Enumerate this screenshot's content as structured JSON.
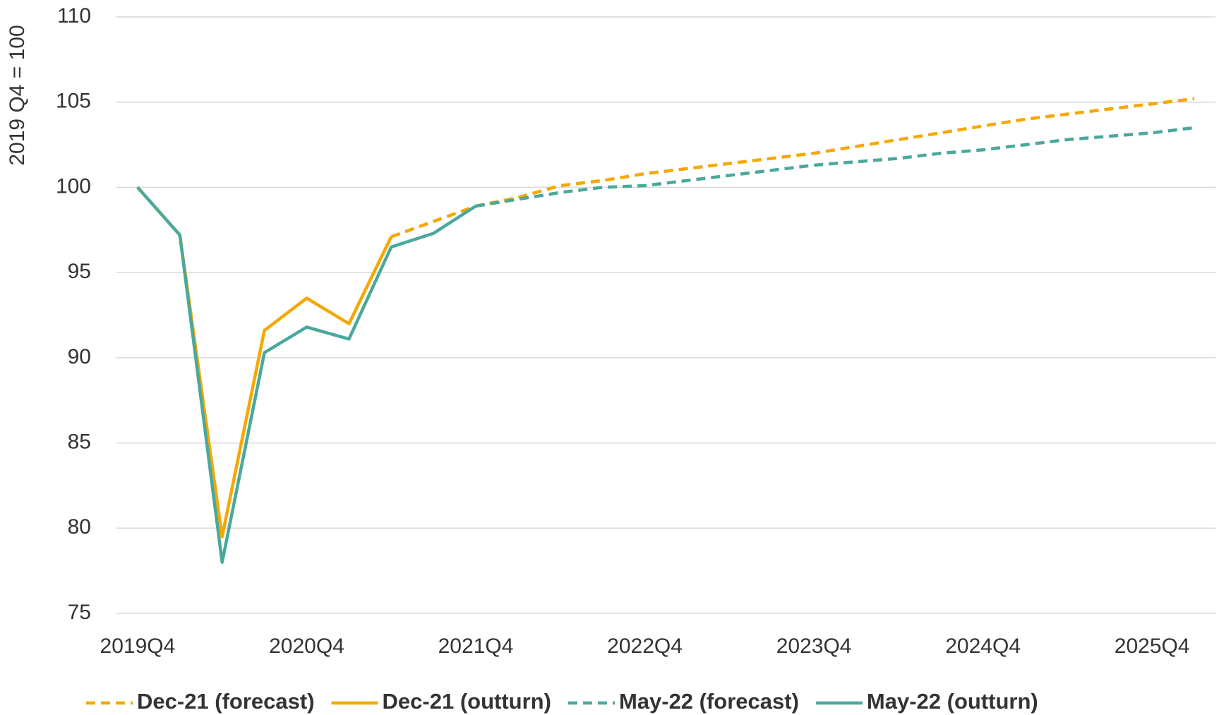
{
  "chart_data": {
    "type": "line",
    "y_label": "2019 Q4 = 100",
    "categories": [
      "2019Q4",
      null,
      null,
      null,
      "2020Q4",
      null,
      null,
      null,
      "2021Q4",
      null,
      null,
      null,
      "2022Q4",
      null,
      null,
      null,
      "2023Q4",
      null,
      null,
      null,
      "2024Q4",
      null,
      null,
      null,
      "2025Q4",
      null
    ],
    "series": [
      {
        "name": "Dec-21 (forecast)",
        "color": "#f5a800",
        "dashed": true,
        "values": [
          null,
          null,
          null,
          null,
          null,
          null,
          97.1,
          98.0,
          98.9,
          99.4,
          100.1,
          100.4,
          100.8,
          101.1,
          101.4,
          101.7,
          102.0,
          102.4,
          102.8,
          103.2,
          103.6,
          104.0,
          104.3,
          104.6,
          104.9,
          105.2
        ]
      },
      {
        "name": "Dec-21 (outturn)",
        "color": "#f5a800",
        "dashed": false,
        "values": [
          100,
          97.2,
          79.5,
          91.6,
          93.5,
          92.0,
          97.1,
          null,
          null,
          null,
          null,
          null,
          null,
          null,
          null,
          null,
          null,
          null,
          null,
          null,
          null,
          null,
          null,
          null,
          null,
          null
        ]
      },
      {
        "name": "May-22 (forecast)",
        "color": "#4aa89c",
        "dashed": true,
        "values": [
          null,
          null,
          null,
          null,
          null,
          null,
          null,
          null,
          98.9,
          99.3,
          99.7,
          100.0,
          100.1,
          100.4,
          100.7,
          101.0,
          101.3,
          101.5,
          101.7,
          102.0,
          102.2,
          102.5,
          102.8,
          103.0,
          103.2,
          103.5
        ]
      },
      {
        "name": "May-22 (outturn)",
        "color": "#4aa89c",
        "dashed": false,
        "values": [
          100,
          97.2,
          78.0,
          90.3,
          91.8,
          91.1,
          96.5,
          97.3,
          98.9,
          null,
          null,
          null,
          null,
          null,
          null,
          null,
          null,
          null,
          null,
          null,
          null,
          null,
          null,
          null,
          null,
          null
        ]
      }
    ],
    "ylim": [
      75,
      110
    ],
    "yticks": [
      75,
      80,
      85,
      90,
      95,
      100,
      105,
      110
    ],
    "grid": true,
    "legend": "bottom"
  }
}
